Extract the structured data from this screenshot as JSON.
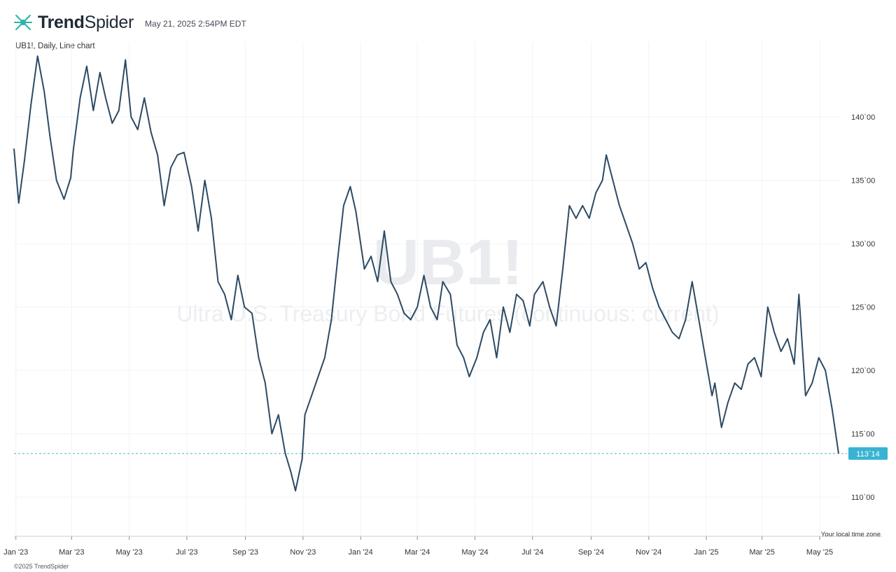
{
  "header": {
    "brand": "TrendSpider",
    "brand_bold": "Trend",
    "brand_light": "Spider",
    "timestamp": "May 21, 2025 2:54PM EDT",
    "subtitle": "UB1!, Daily, Line chart"
  },
  "watermark": {
    "symbol": "UB1!",
    "description": "Ultra U.S. Treasury Bond Futures (continuous: current)"
  },
  "footer": {
    "copyright": "©2025 TrendSpider",
    "timezone_note": "Your local time zone"
  },
  "colors": {
    "line": "#2d4a63",
    "last_price_bg": "#3ab3d3",
    "last_price_dash": "#4fb6c7",
    "grid": "#f1f3f5"
  },
  "chart_data": {
    "type": "line",
    "title": "",
    "xlabel": "",
    "ylabel": "",
    "ylim": [
      108.5,
      147.5
    ],
    "yticks": [
      "110`00",
      "115`00",
      "120`00",
      "125`00",
      "130`00",
      "135`00",
      "140`00"
    ],
    "ytick_values": [
      110,
      115,
      120,
      125,
      130,
      135,
      140
    ],
    "xticks": [
      "Jan '23",
      "Mar '23",
      "May '23",
      "Jul '23",
      "Sep '23",
      "Nov '23",
      "Jan '24",
      "Mar '24",
      "May '24",
      "Jul '24",
      "Sep '24",
      "Nov '24",
      "Jan '25",
      "Mar '25",
      "May '25"
    ],
    "xtick_dates": [
      "2023-01-01",
      "2023-03-01",
      "2023-05-01",
      "2023-07-01",
      "2023-09-01",
      "2023-11-01",
      "2024-01-01",
      "2024-03-01",
      "2024-05-01",
      "2024-07-01",
      "2024-09-01",
      "2024-11-01",
      "2025-01-01",
      "2025-03-01",
      "2025-05-01"
    ],
    "last_price": 113.4375,
    "last_price_label": "113`14",
    "series": [
      {
        "x": [
          "2022-12-30",
          "2023-01-04",
          "2023-01-10",
          "2023-01-17",
          "2023-01-24",
          "2023-01-31",
          "2023-02-06",
          "2023-02-13",
          "2023-02-21",
          "2023-02-28",
          "2023-03-03",
          "2023-03-10",
          "2023-03-17",
          "2023-03-24",
          "2023-03-31",
          "2023-04-06",
          "2023-04-13",
          "2023-04-20",
          "2023-04-27",
          "2023-05-03",
          "2023-05-10",
          "2023-05-17",
          "2023-05-24",
          "2023-05-31",
          "2023-06-07",
          "2023-06-14",
          "2023-06-21",
          "2023-06-28",
          "2023-07-06",
          "2023-07-13",
          "2023-07-20",
          "2023-07-27",
          "2023-08-03",
          "2023-08-10",
          "2023-08-17",
          "2023-08-24",
          "2023-08-31",
          "2023-09-08",
          "2023-09-15",
          "2023-09-22",
          "2023-09-29",
          "2023-10-06",
          "2023-10-13",
          "2023-10-19",
          "2023-10-24",
          "2023-10-31",
          "2023-11-03",
          "2023-11-10",
          "2023-11-17",
          "2023-11-24",
          "2023-12-01",
          "2023-12-08",
          "2023-12-14",
          "2023-12-21",
          "2023-12-27",
          "2024-01-05",
          "2024-01-12",
          "2024-01-19",
          "2024-01-26",
          "2024-02-02",
          "2024-02-09",
          "2024-02-16",
          "2024-02-23",
          "2024-03-01",
          "2024-03-08",
          "2024-03-15",
          "2024-03-22",
          "2024-03-28",
          "2024-04-05",
          "2024-04-12",
          "2024-04-19",
          "2024-04-25",
          "2024-05-03",
          "2024-05-10",
          "2024-05-17",
          "2024-05-24",
          "2024-05-31",
          "2024-06-07",
          "2024-06-14",
          "2024-06-21",
          "2024-06-28",
          "2024-07-03",
          "2024-07-12",
          "2024-07-19",
          "2024-07-26",
          "2024-08-02",
          "2024-08-09",
          "2024-08-16",
          "2024-08-23",
          "2024-08-30",
          "2024-09-06",
          "2024-09-13",
          "2024-09-17",
          "2024-09-24",
          "2024-10-01",
          "2024-10-08",
          "2024-10-15",
          "2024-10-22",
          "2024-10-29",
          "2024-11-05",
          "2024-11-12",
          "2024-11-19",
          "2024-11-26",
          "2024-12-03",
          "2024-12-10",
          "2024-12-17",
          "2024-12-24",
          "2024-12-31",
          "2025-01-07",
          "2025-01-10",
          "2025-01-17",
          "2025-01-24",
          "2025-01-31",
          "2025-02-07",
          "2025-02-14",
          "2025-02-21",
          "2025-02-28",
          "2025-03-07",
          "2025-03-14",
          "2025-03-21",
          "2025-03-28",
          "2025-04-04",
          "2025-04-09",
          "2025-04-16",
          "2025-04-23",
          "2025-04-30",
          "2025-05-07",
          "2025-05-14",
          "2025-05-21"
        ],
        "y": [
          137.5,
          133.2,
          136.5,
          141.0,
          144.8,
          142.0,
          138.5,
          135.0,
          133.5,
          135.2,
          137.5,
          141.5,
          144.0,
          140.5,
          143.5,
          141.5,
          139.5,
          140.5,
          144.5,
          140.0,
          139.0,
          141.5,
          138.8,
          137.0,
          133.0,
          136.0,
          137.0,
          137.2,
          134.5,
          131.0,
          135.0,
          132.0,
          127.0,
          126.0,
          124.0,
          127.5,
          125.0,
          124.5,
          121.0,
          119.0,
          115.0,
          116.5,
          113.5,
          112.0,
          110.5,
          113.0,
          116.5,
          118.0,
          119.5,
          121.0,
          124.0,
          129.0,
          133.0,
          134.5,
          132.5,
          128.0,
          129.0,
          127.0,
          131.0,
          127.0,
          126.0,
          124.5,
          124.0,
          125.0,
          127.5,
          125.0,
          124.0,
          127.0,
          126.0,
          122.0,
          121.0,
          119.5,
          121.0,
          123.0,
          124.0,
          121.0,
          125.0,
          123.0,
          126.0,
          125.5,
          123.5,
          126.0,
          127.0,
          125.0,
          123.5,
          128.0,
          133.0,
          132.0,
          133.0,
          132.0,
          134.0,
          135.0,
          137.0,
          135.0,
          133.0,
          131.5,
          130.0,
          128.0,
          128.5,
          126.5,
          125.0,
          124.0,
          123.0,
          122.5,
          124.0,
          127.0,
          124.0,
          121.0,
          118.0,
          119.0,
          115.5,
          117.5,
          119.0,
          118.5,
          120.5,
          121.0,
          119.5,
          125.0,
          123.0,
          121.5,
          122.5,
          120.5,
          126.0,
          118.0,
          119.0,
          121.0,
          120.0,
          117.0,
          113.4375
        ]
      }
    ]
  }
}
